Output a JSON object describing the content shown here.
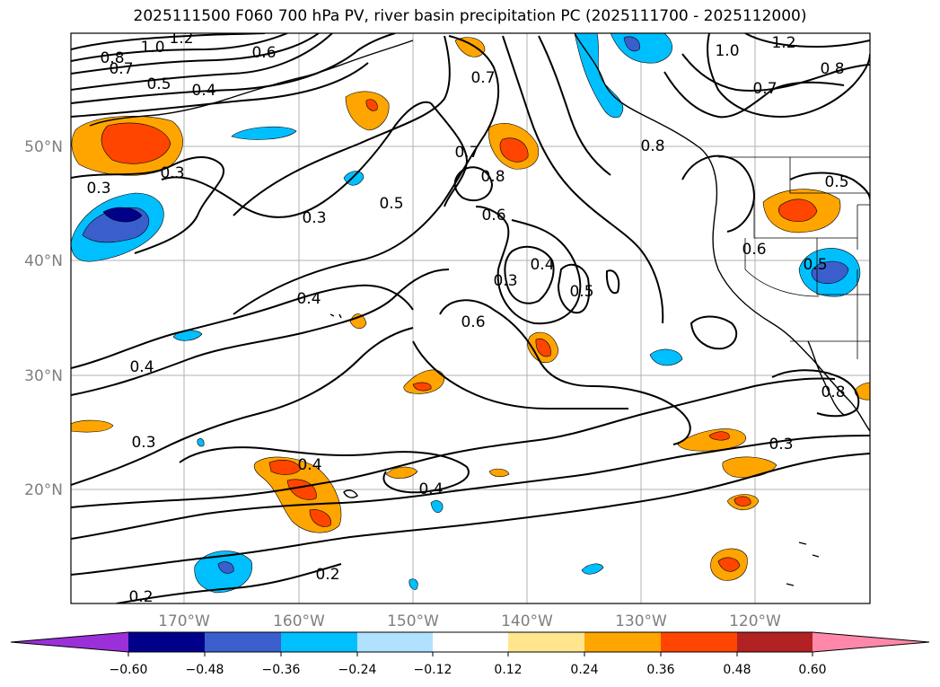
{
  "title": "2025111500 F060 700 hPa PV, river basin precipitation PC (2025111700 - 2025112000)",
  "latitude_labels": [
    "50°N",
    "40°N",
    "30°N",
    "20°N"
  ],
  "longitude_labels": [
    "170°W",
    "160°W",
    "150°W",
    "140°W",
    "130°W",
    "120°W"
  ],
  "contour_labels": [
    "1.2",
    "1.0",
    "0.8",
    "0.7",
    "0.5",
    "0.4",
    "0.6",
    "0.3",
    "0.3",
    "0.5",
    "0.3",
    "0.4",
    "0.4",
    "0.3",
    "0.4",
    "0.4",
    "0.2",
    "0.2",
    "0.7",
    "0.7",
    "0.8",
    "0.6",
    "0.3",
    "0.4",
    "0.5",
    "0.6",
    "1.0",
    "1.2",
    "0.8",
    "0.7",
    "0.8",
    "0.5",
    "0.6",
    "0.5",
    "0.3",
    "0.8"
  ],
  "colorbar": {
    "ticks": [
      "−0.60",
      "−0.48",
      "−0.36",
      "−0.24",
      "−0.12",
      "0.12",
      "0.24",
      "0.36",
      "0.48",
      "0.60"
    ],
    "colors": [
      "#9b30d8",
      "#00008b",
      "#3a5fcd",
      "#00bfff",
      "#b0e2ff",
      "#ffffff",
      "#ffe68c",
      "#ffa500",
      "#ff4500",
      "#b22222",
      "#ff88aa"
    ]
  }
}
